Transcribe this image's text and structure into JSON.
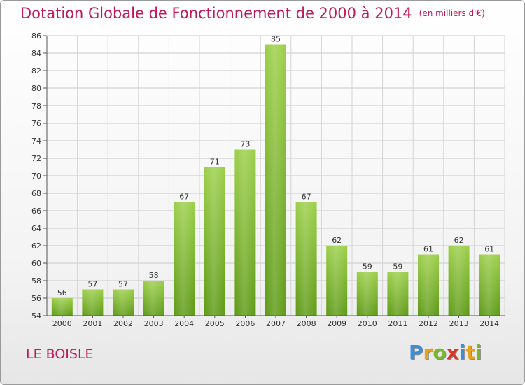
{
  "title": "Dotation Globale de Fonctionnement de 2000 à 2014",
  "unit": "(en milliers d'€)",
  "commune": "LE BOISLE",
  "logo": {
    "letters": [
      "P",
      "r",
      "o",
      "x",
      "i",
      "t",
      "i"
    ],
    "colors": [
      "#3a8fd6",
      "#e8a21c",
      "#7ab82f",
      "#d9362a",
      "#3a8fd6",
      "#e8a21c",
      "#7ab82f"
    ]
  },
  "chart_data": {
    "type": "bar",
    "categories": [
      "2000",
      "2001",
      "2002",
      "2003",
      "2004",
      "2005",
      "2006",
      "2007",
      "2008",
      "2009",
      "2010",
      "2011",
      "2012",
      "2013",
      "2014"
    ],
    "values": [
      56,
      57,
      57,
      58,
      67,
      71,
      73,
      85,
      67,
      62,
      59,
      59,
      61,
      62,
      61
    ],
    "ylim": [
      54,
      86
    ],
    "yticks": [
      54,
      56,
      58,
      60,
      62,
      64,
      66,
      68,
      70,
      72,
      74,
      76,
      78,
      80,
      82,
      84,
      86
    ],
    "grid": true,
    "bar_color": "#7ab82f"
  }
}
